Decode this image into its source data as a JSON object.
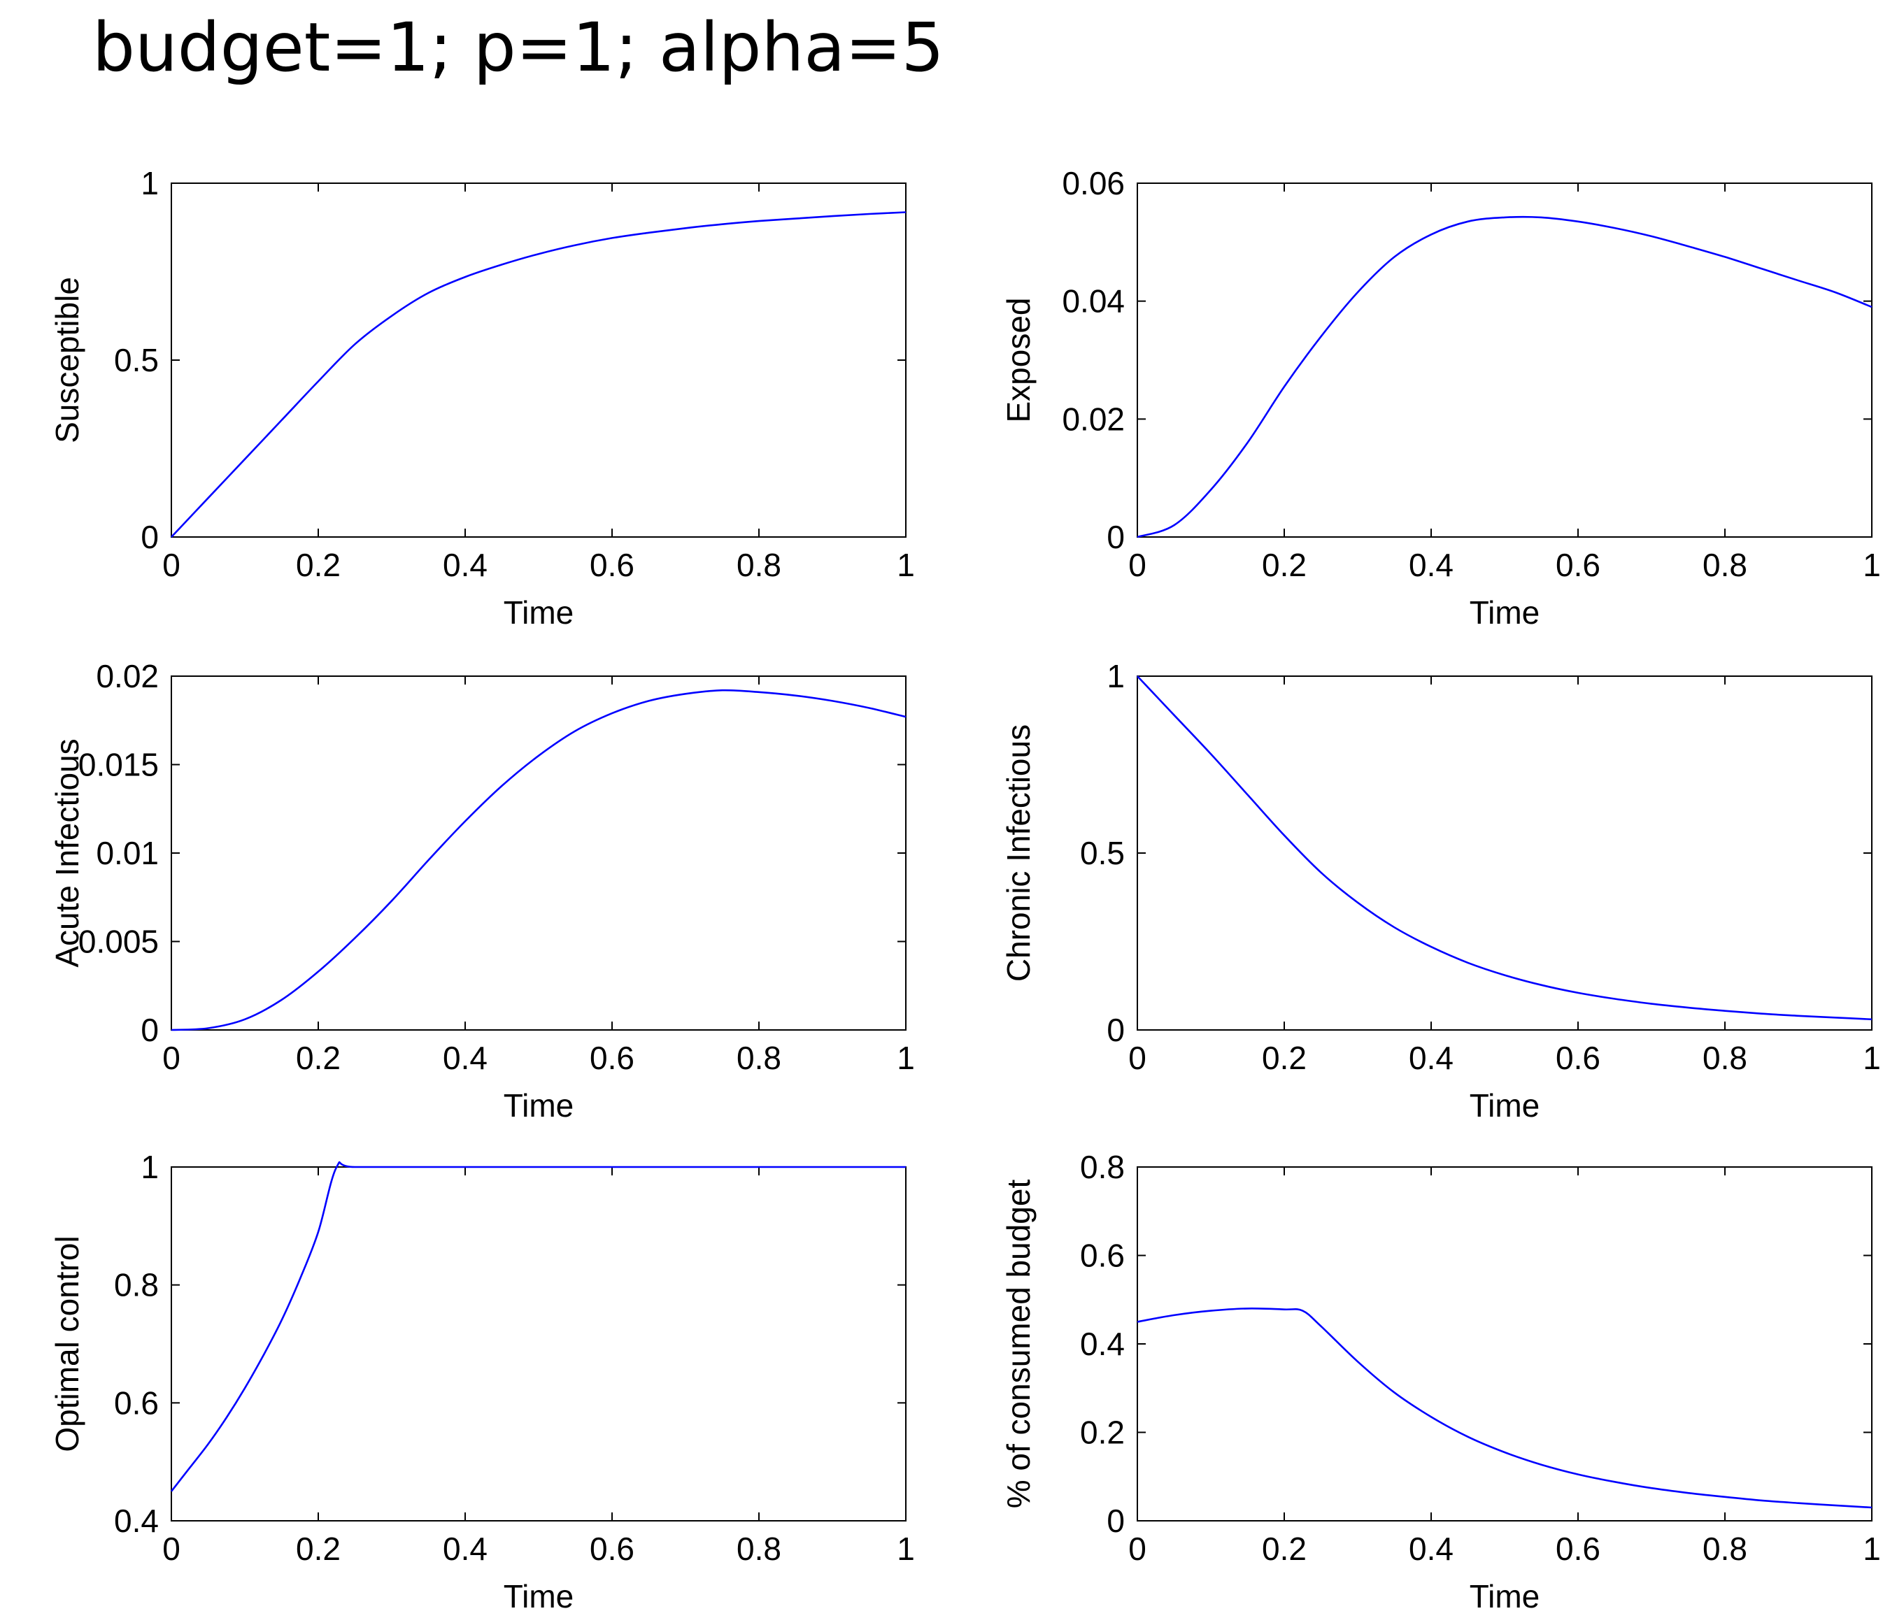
{
  "title": "budget=1; p=1; alpha=5",
  "colors": {
    "line": "#0000ff",
    "axes": "#000000",
    "background": "#ffffff"
  },
  "chart_data": [
    {
      "type": "line",
      "xlabel": "Time",
      "ylabel": "Susceptible",
      "xlim": [
        0,
        1
      ],
      "ylim": [
        0,
        1
      ],
      "xticks": [
        "0",
        "0.2",
        "0.4",
        "0.6",
        "0.8",
        "1"
      ],
      "yticks": [
        "0",
        "0.5",
        "1"
      ],
      "grid": false,
      "series": [
        {
          "x": [
            0,
            0.05,
            0.1,
            0.15,
            0.2,
            0.25,
            0.3,
            0.35,
            0.4,
            0.45,
            0.5,
            0.55,
            0.6,
            0.65,
            0.7,
            0.75,
            0.8,
            0.85,
            0.9,
            0.95,
            1.0
          ],
          "y": [
            0,
            0.11,
            0.22,
            0.33,
            0.44,
            0.545,
            0.625,
            0.69,
            0.735,
            0.77,
            0.8,
            0.825,
            0.845,
            0.86,
            0.873,
            0.884,
            0.893,
            0.9,
            0.907,
            0.913,
            0.918
          ]
        }
      ]
    },
    {
      "type": "line",
      "xlabel": "Time",
      "ylabel": "Exposed",
      "xlim": [
        0,
        1
      ],
      "ylim": [
        0,
        0.06
      ],
      "xticks": [
        "0",
        "0.2",
        "0.4",
        "0.6",
        "0.8",
        "1"
      ],
      "yticks": [
        "0",
        "0.02",
        "0.04",
        "0.06"
      ],
      "grid": false,
      "series": [
        {
          "x": [
            0,
            0.05,
            0.1,
            0.15,
            0.2,
            0.25,
            0.3,
            0.35,
            0.4,
            0.45,
            0.5,
            0.55,
            0.6,
            0.65,
            0.7,
            0.75,
            0.8,
            0.85,
            0.9,
            0.95,
            1.0
          ],
          "y": [
            0,
            0.002,
            0.008,
            0.016,
            0.0255,
            0.034,
            0.0415,
            0.0475,
            0.0513,
            0.0535,
            0.0542,
            0.0542,
            0.0535,
            0.0524,
            0.051,
            0.0493,
            0.0475,
            0.0455,
            0.0435,
            0.0415,
            0.039
          ]
        }
      ]
    },
    {
      "type": "line",
      "xlabel": "Time",
      "ylabel": "Acute Infectious",
      "xlim": [
        0,
        1
      ],
      "ylim": [
        0,
        0.02
      ],
      "xticks": [
        "0",
        "0.2",
        "0.4",
        "0.6",
        "0.8",
        "1"
      ],
      "yticks": [
        "0",
        "0.005",
        "0.01",
        "0.015",
        "0.02"
      ],
      "grid": false,
      "series": [
        {
          "x": [
            0,
            0.05,
            0.1,
            0.15,
            0.2,
            0.25,
            0.3,
            0.35,
            0.4,
            0.45,
            0.5,
            0.55,
            0.6,
            0.65,
            0.7,
            0.75,
            0.8,
            0.85,
            0.9,
            0.95,
            1.0
          ],
          "y": [
            0,
            0.0001,
            0.0006,
            0.0017,
            0.0033,
            0.0052,
            0.0073,
            0.0096,
            0.0118,
            0.0138,
            0.0155,
            0.0169,
            0.0179,
            0.0186,
            0.019,
            0.0192,
            0.0191,
            0.0189,
            0.0186,
            0.0182,
            0.0177
          ]
        }
      ]
    },
    {
      "type": "line",
      "xlabel": "Time",
      "ylabel": "Chronic Infectious",
      "xlim": [
        0,
        1
      ],
      "ylim": [
        0,
        1
      ],
      "xticks": [
        "0",
        "0.2",
        "0.4",
        "0.6",
        "0.8",
        "1"
      ],
      "yticks": [
        "0",
        "0.5",
        "1"
      ],
      "grid": false,
      "series": [
        {
          "x": [
            0,
            0.05,
            0.1,
            0.15,
            0.2,
            0.25,
            0.3,
            0.35,
            0.4,
            0.45,
            0.5,
            0.55,
            0.6,
            0.65,
            0.7,
            0.75,
            0.8,
            0.85,
            0.9,
            0.95,
            1.0
          ],
          "y": [
            1.0,
            0.89,
            0.78,
            0.665,
            0.55,
            0.445,
            0.36,
            0.29,
            0.235,
            0.19,
            0.155,
            0.127,
            0.105,
            0.088,
            0.074,
            0.063,
            0.054,
            0.046,
            0.04,
            0.035,
            0.03
          ]
        }
      ]
    },
    {
      "type": "line",
      "xlabel": "Time",
      "ylabel": "Optimal control",
      "xlim": [
        0,
        1
      ],
      "ylim": [
        0.4,
        1
      ],
      "xticks": [
        "0",
        "0.2",
        "0.4",
        "0.6",
        "0.8",
        "1"
      ],
      "yticks": [
        "0.4",
        "0.6",
        "0.8",
        "1"
      ],
      "grid": false,
      "series": [
        {
          "x": [
            0,
            0.025,
            0.05,
            0.075,
            0.1,
            0.125,
            0.15,
            0.175,
            0.2,
            0.225,
            0.25,
            0.4,
            0.6,
            0.8,
            1.0
          ],
          "y": [
            0.45,
            0.49,
            0.53,
            0.575,
            0.625,
            0.68,
            0.74,
            0.81,
            0.89,
            1.0,
            1.0,
            1.0,
            1.0,
            1.0,
            1.0
          ]
        }
      ]
    },
    {
      "type": "line",
      "xlabel": "Time",
      "ylabel": "% of consumed budget",
      "xlim": [
        0,
        1
      ],
      "ylim": [
        0,
        0.8
      ],
      "xticks": [
        "0",
        "0.2",
        "0.4",
        "0.6",
        "0.8",
        "1"
      ],
      "yticks": [
        "0",
        "0.2",
        "0.4",
        "0.6",
        "0.8"
      ],
      "grid": false,
      "series": [
        {
          "x": [
            0,
            0.05,
            0.1,
            0.15,
            0.2,
            0.225,
            0.25,
            0.3,
            0.35,
            0.4,
            0.45,
            0.5,
            0.55,
            0.6,
            0.65,
            0.7,
            0.75,
            0.8,
            0.85,
            0.9,
            0.95,
            1.0
          ],
          "y": [
            0.45,
            0.465,
            0.475,
            0.48,
            0.478,
            0.475,
            0.44,
            0.36,
            0.29,
            0.235,
            0.19,
            0.155,
            0.127,
            0.105,
            0.088,
            0.074,
            0.063,
            0.054,
            0.046,
            0.04,
            0.035,
            0.03
          ]
        }
      ]
    }
  ]
}
